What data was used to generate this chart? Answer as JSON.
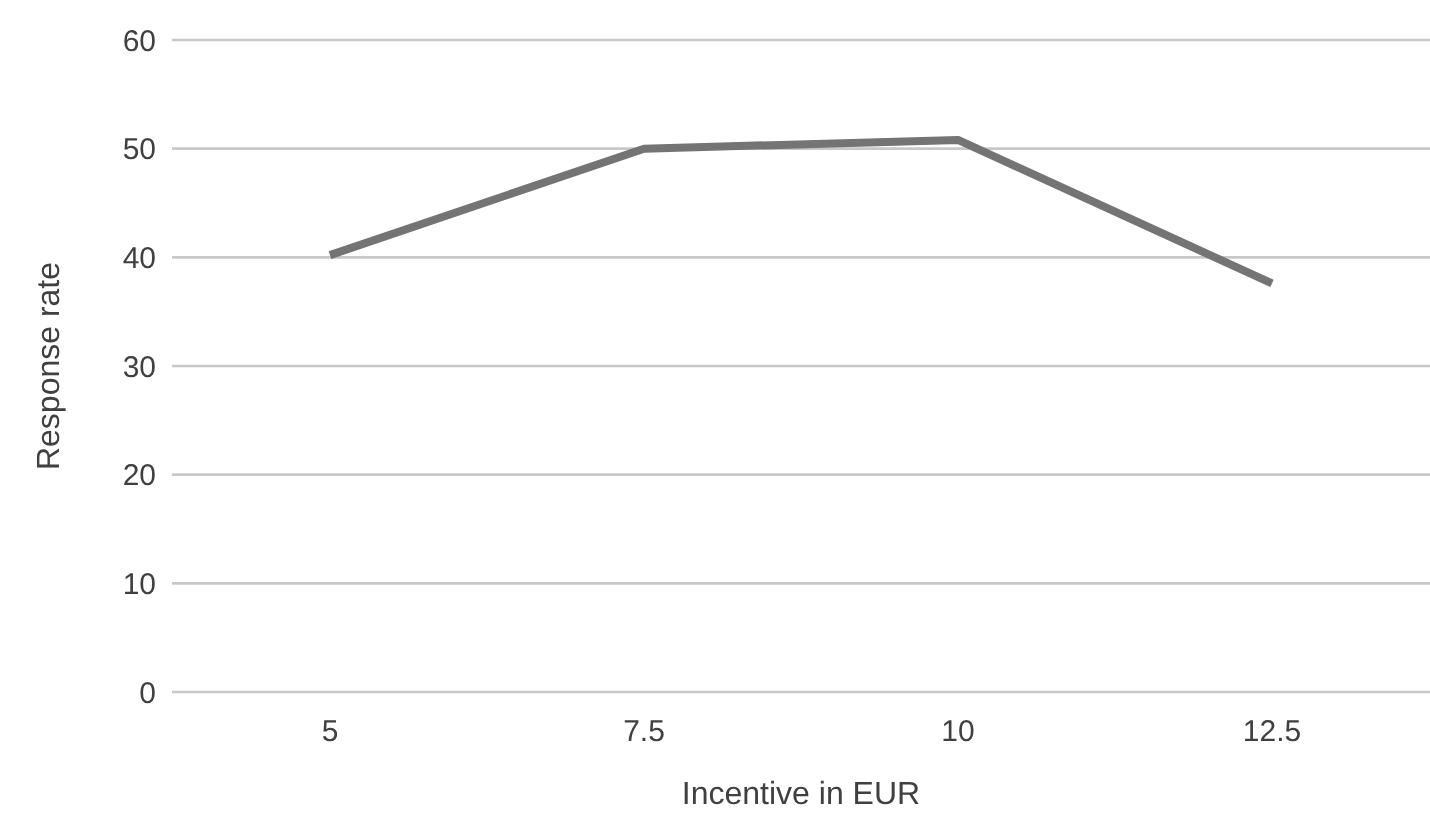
{
  "chart_data": {
    "type": "line",
    "xlabel": "Incentive in EUR",
    "ylabel": "Response rate",
    "categories": [
      "5",
      "7.5",
      "10",
      "12.5"
    ],
    "series": [
      {
        "color": "#747474",
        "values": [
          40.2,
          50,
          50.8,
          37.6
        ]
      }
    ],
    "ylim": [
      0,
      60
    ],
    "yticks": [
      0,
      10,
      20,
      30,
      40,
      50,
      60
    ],
    "grid": "y",
    "legend": false,
    "marker": "none",
    "line_style": "solid"
  }
}
